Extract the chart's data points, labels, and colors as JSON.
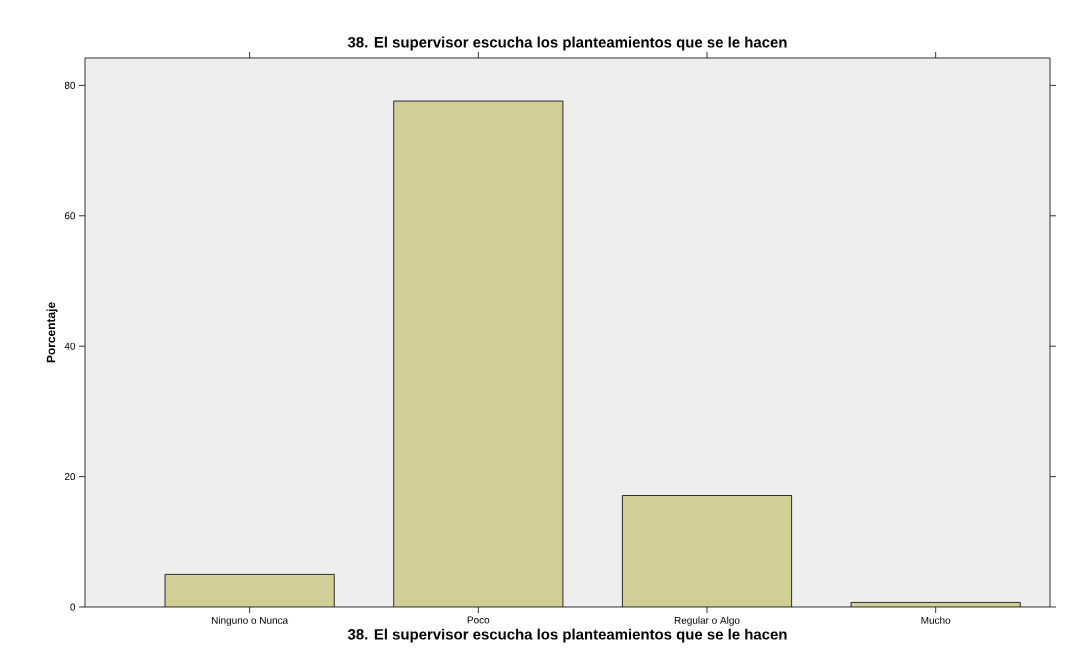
{
  "chart_data": {
    "type": "bar",
    "title": "38. El supervisor escucha los planteamientos que se le hacen",
    "xlabel": "38. El supervisor escucha los planteamientos que se le hacen",
    "ylabel": "Porcentaje",
    "categories": [
      "Ninguno o Nunca",
      "Poco",
      "Regular o Algo",
      "Mucho"
    ],
    "values": [
      5.0,
      77.6,
      17.1,
      0.7
    ],
    "color": "#d2ce98",
    "ylim": [
      0,
      84.2
    ],
    "yticks": [
      0,
      20,
      40,
      60,
      80
    ],
    "grid": false
  }
}
